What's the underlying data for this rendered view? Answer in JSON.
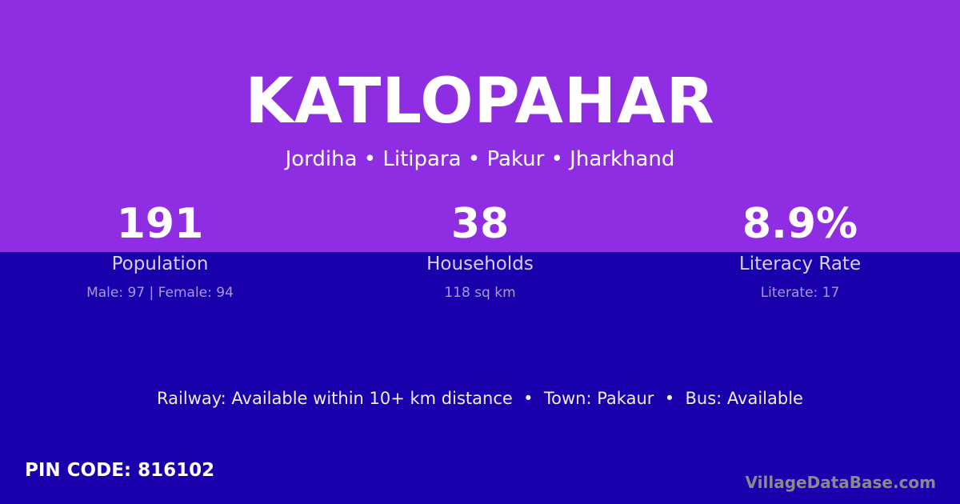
{
  "colors": {
    "header_bg": "#8e2de2",
    "body_bg": "#1a00ad"
  },
  "village": {
    "name": "KATLOPAHAR",
    "location": "Jordiha • Litipara • Pakur • Jharkhand"
  },
  "stats": [
    {
      "value": "191",
      "label": "Population",
      "detail": "Male: 97 | Female: 94"
    },
    {
      "value": "38",
      "label": "Households",
      "detail": "118 sq km"
    },
    {
      "value": "8.9%",
      "label": "Literacy Rate",
      "detail": "Literate: 17"
    }
  ],
  "transport": "Railway: Available within 10+ km distance  •  Town: Pakaur  •  Bus: Available",
  "pin": "PIN CODE: 816102",
  "brand": "VillageDataBase.com"
}
